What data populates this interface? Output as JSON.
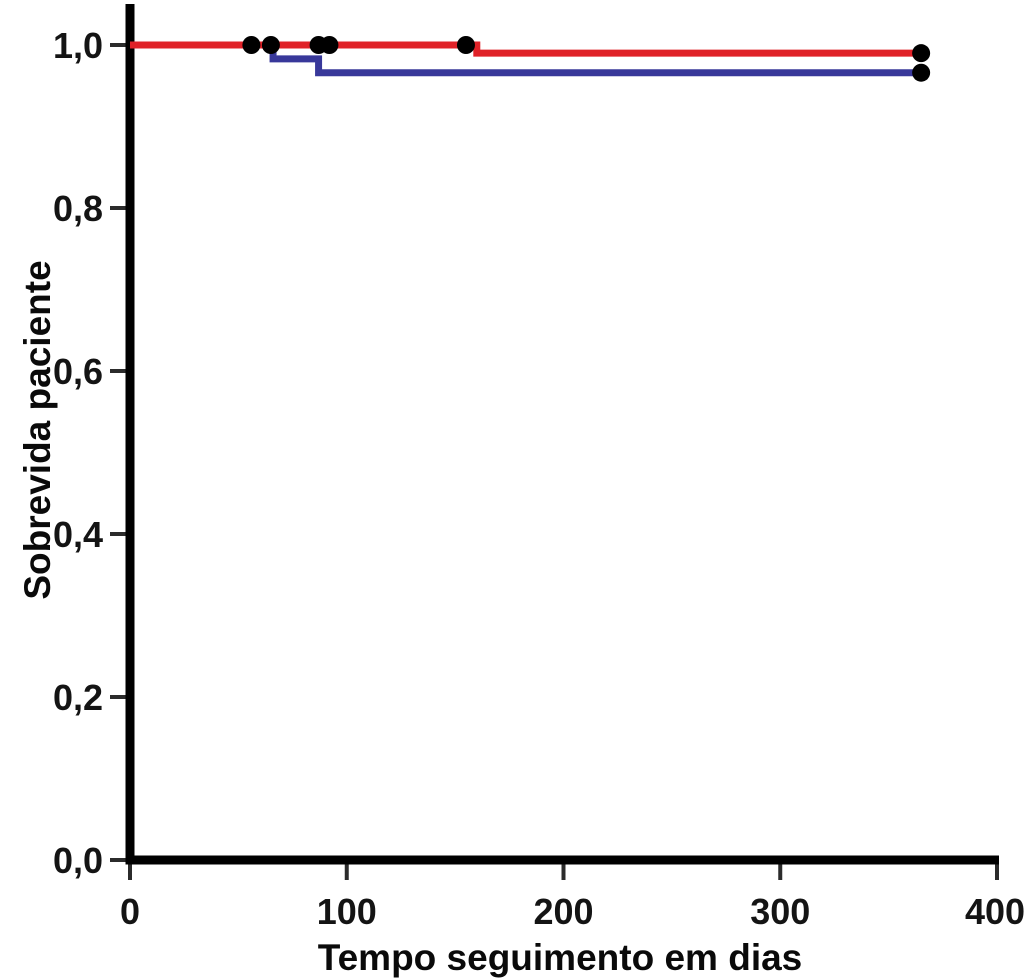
{
  "figure": {
    "background": "#ffffff",
    "axis_color": "#000000",
    "tick_color": "#2b2b2b"
  },
  "chart_data": {
    "type": "line",
    "subtype": "kaplan-meier-step",
    "title": "",
    "xlabel": "Tempo seguimento em dias",
    "ylabel": "Sobrevida paciente",
    "xlim": [
      0,
      400
    ],
    "ylim": [
      0.0,
      1.0
    ],
    "grid": false,
    "legend_position": "none",
    "x_ticks": {
      "values": [
        0,
        100,
        200,
        300,
        400
      ],
      "labels": [
        "0",
        "100",
        "200",
        "300",
        "400"
      ]
    },
    "y_ticks": {
      "values": [
        0.0,
        0.2,
        0.4,
        0.6,
        0.8,
        1.0
      ],
      "labels": [
        "0,0",
        "0,2",
        "0,4",
        "0,6",
        "0,8",
        "1,0"
      ]
    },
    "series": [
      {
        "name": "curva-azul",
        "color": "#38389a",
        "line_width": 7,
        "points": [
          [
            0,
            1.0
          ],
          [
            66,
            1.0
          ],
          [
            66,
            0.983
          ],
          [
            87,
            0.983
          ],
          [
            87,
            0.966
          ],
          [
            365,
            0.966
          ]
        ]
      },
      {
        "name": "curva-vermelha",
        "color": "#e02228",
        "line_width": 7,
        "points": [
          [
            0,
            1.0
          ],
          [
            160,
            1.0
          ],
          [
            160,
            0.99
          ],
          [
            365,
            0.99
          ]
        ]
      }
    ],
    "censor_marks": {
      "color": "#000000",
      "radius": 9,
      "points": [
        {
          "series": "curva-vermelha",
          "t": 56,
          "s": 1.0
        },
        {
          "series": "curva-vermelha",
          "t": 65,
          "s": 1.0
        },
        {
          "series": "curva-vermelha",
          "t": 87,
          "s": 1.0
        },
        {
          "series": "curva-vermelha",
          "t": 92,
          "s": 1.0
        },
        {
          "series": "curva-vermelha",
          "t": 155,
          "s": 1.0
        },
        {
          "series": "curva-vermelha",
          "t": 365,
          "s": 0.99
        },
        {
          "series": "curva-azul",
          "t": 365,
          "s": 0.966
        }
      ]
    }
  }
}
